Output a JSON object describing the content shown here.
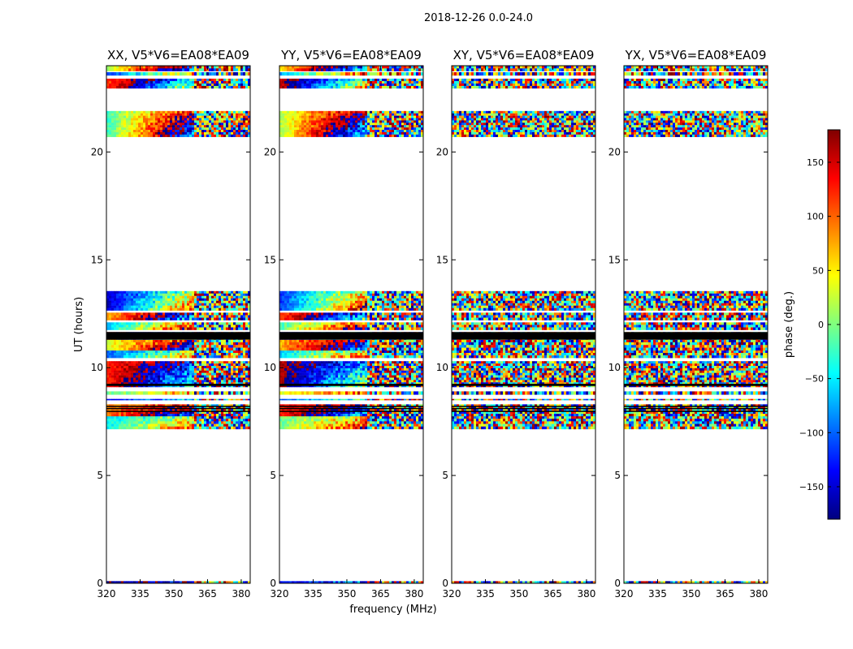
{
  "chart_data": {
    "type": "heatmap",
    "suptitle": "2018-12-26 0.0-24.0",
    "xlabel": "frequency (MHz)",
    "ylabel": "UT (hours)",
    "xlim": [
      320,
      384
    ],
    "ylim": [
      0,
      24
    ],
    "xticks": [
      320,
      335,
      350,
      365,
      380
    ],
    "yticks": [
      0,
      5,
      10,
      15,
      20
    ],
    "colorbar": {
      "label": "phase (deg.)",
      "range": [
        -180,
        180
      ],
      "ticks": [
        -150,
        -100,
        -50,
        0,
        50,
        100,
        150
      ],
      "tick_labels": [
        "−150",
        "−100",
        "−50",
        "0",
        "50",
        "100",
        "150"
      ],
      "colormap_stops": [
        "#00007f",
        "#0000ff",
        "#007fff",
        "#00ffff",
        "#7fff7f",
        "#ffff00",
        "#ff7f00",
        "#ff0000",
        "#7f0000"
      ]
    },
    "panels": [
      {
        "title": "XX, V5*V6=EA08*EA09",
        "polarization": "XX",
        "coherent_phase": true
      },
      {
        "title": "YY, V5*V6=EA08*EA09",
        "polarization": "YY",
        "coherent_phase": true
      },
      {
        "title": "XY, V5*V6=EA08*EA09",
        "polarization": "XY",
        "coherent_phase": false
      },
      {
        "title": "YX, V5*V6=EA08*EA09",
        "polarization": "YX",
        "coherent_phase": false
      }
    ],
    "data_time_ranges_hours": [
      [
        0.0,
        0.1
      ],
      [
        7.15,
        7.75
      ],
      [
        7.75,
        8.3
      ],
      [
        8.5,
        8.55
      ],
      [
        8.75,
        8.9
      ],
      [
        9.1,
        10.3
      ],
      [
        10.45,
        10.8
      ],
      [
        10.8,
        11.3
      ],
      [
        11.3,
        11.65
      ],
      [
        11.75,
        12.1
      ],
      [
        12.2,
        12.55
      ],
      [
        12.65,
        13.55
      ],
      [
        20.7,
        21.9
      ],
      [
        22.95,
        23.4
      ],
      [
        23.55,
        23.7
      ],
      [
        23.75,
        24.0
      ]
    ],
    "black_bands_hours": [
      [
        11.3,
        11.65
      ],
      [
        9.15,
        9.25
      ],
      [
        7.95,
        8.0
      ],
      [
        8.1,
        8.13
      ],
      [
        8.2,
        8.23
      ]
    ]
  }
}
